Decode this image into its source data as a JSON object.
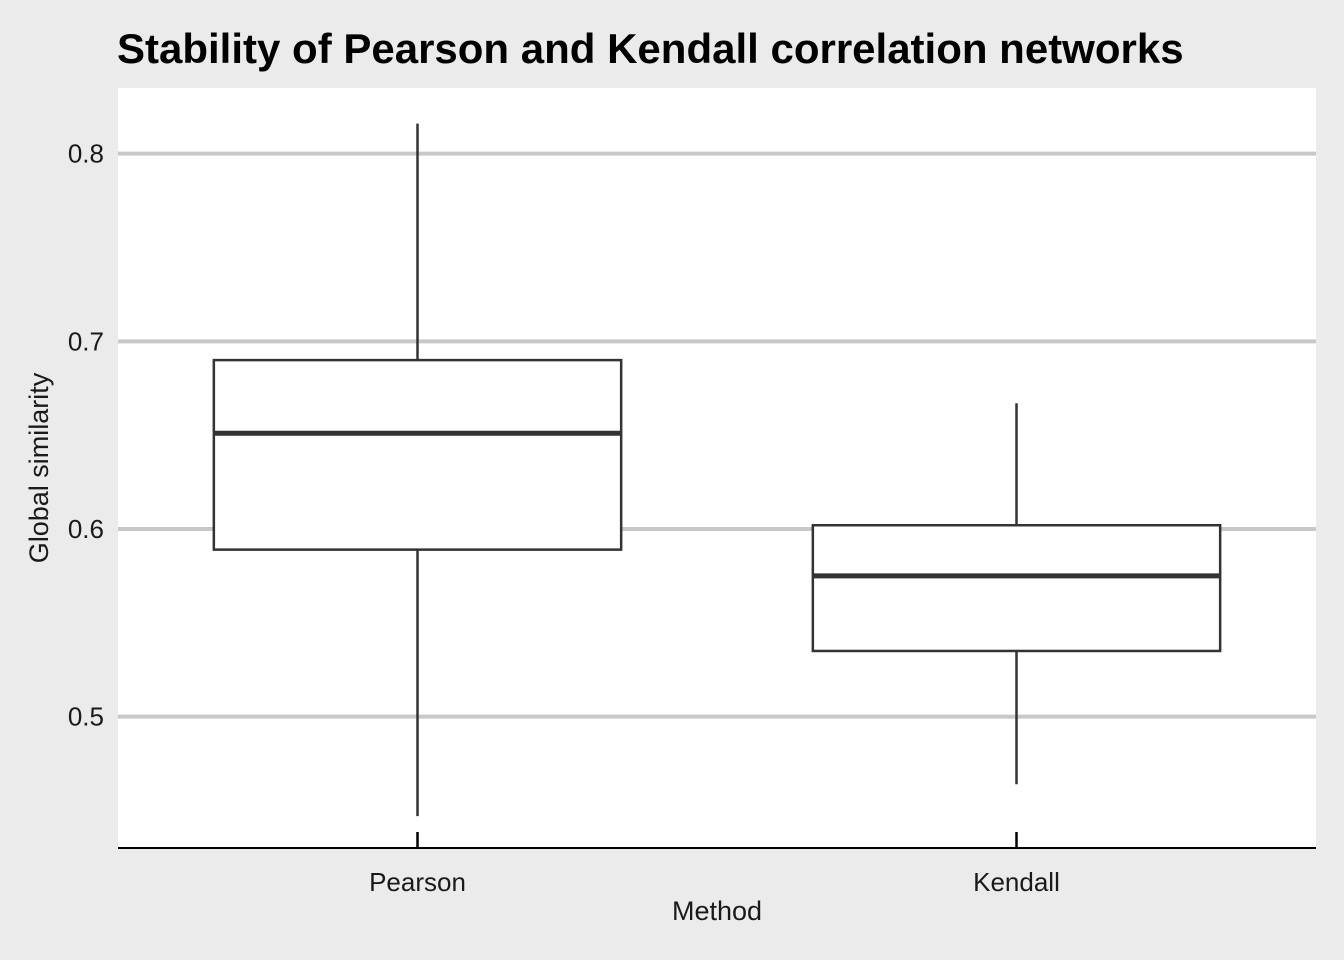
{
  "chart_data": {
    "type": "box",
    "title": "Stability of Pearson and Kendall correlation networks",
    "xlabel": "Method",
    "ylabel": "Global similarity",
    "categories": [
      "Pearson",
      "Kendall"
    ],
    "ylim": [
      0.43,
      0.835
    ],
    "yticks": [
      0.5,
      0.6,
      0.7,
      0.8
    ],
    "ytick_labels": [
      "0.5",
      "0.6",
      "0.7",
      "0.8"
    ],
    "grid": "horizontal major",
    "boxes": [
      {
        "name": "Pearson",
        "min": 0.447,
        "q1": 0.589,
        "median": 0.651,
        "q3": 0.69,
        "max": 0.816
      },
      {
        "name": "Kendall",
        "min": 0.464,
        "q1": 0.535,
        "median": 0.575,
        "q3": 0.602,
        "max": 0.667
      }
    ],
    "colors": {
      "background": "#ebebeb",
      "panel": "#ffffff",
      "grid": "#c8c8c8",
      "box_stroke": "#333333"
    }
  }
}
